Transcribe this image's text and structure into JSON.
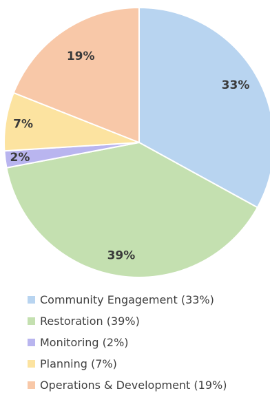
{
  "chart_data": {
    "type": "pie",
    "title": "",
    "start_angle": "12 o'clock",
    "direction": "clockwise",
    "legend_position": "bottom",
    "slices": [
      {
        "label": "Community Engagement",
        "value": 33,
        "value_label": "33%",
        "legend_label": "Community Engagement (33%)",
        "color": "#b8d4f0"
      },
      {
        "label": "Restoration",
        "value": 39,
        "value_label": "39%",
        "legend_label": "Restoration (39%)",
        "color": "#c4e0b0"
      },
      {
        "label": "Monitoring",
        "value": 2,
        "value_label": "2%",
        "legend_label": "Monitoring (2%)",
        "color": "#b9b5ef"
      },
      {
        "label": "Planning",
        "value": 7,
        "value_label": "7%",
        "legend_label": "Planning (7%)",
        "color": "#fce3a0"
      },
      {
        "label": "Operations & Development",
        "value": 19,
        "value_label": "19%",
        "legend_label": "Operations & Development (19%)",
        "color": "#f8c8a8"
      }
    ]
  }
}
